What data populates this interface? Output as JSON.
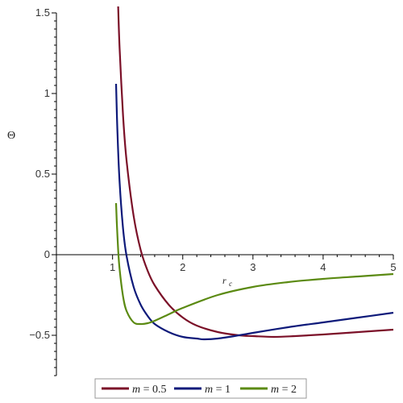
{
  "chart_data": {
    "type": "line",
    "title": "",
    "xlabel": "r",
    "xlabel_sub": "c",
    "ylabel": "Θ",
    "xlim": [
      0.2,
      5
    ],
    "ylim": [
      -0.75,
      1.5
    ],
    "x_ticks": [
      {
        "value": 1,
        "label": "1"
      },
      {
        "value": 2,
        "label": "2"
      },
      {
        "value": 3,
        "label": "3"
      },
      {
        "value": 4,
        "label": "4"
      },
      {
        "value": 5,
        "label": "5"
      }
    ],
    "y_ticks": [
      {
        "value": 1.5,
        "label": "1.5"
      },
      {
        "value": 1,
        "label": "1"
      },
      {
        "value": 0.5,
        "label": "0.5"
      },
      {
        "value": 0,
        "label": "0"
      },
      {
        "value": -0.5,
        "label": "−0.5"
      }
    ],
    "grid": false,
    "legend_position": "bottom",
    "series": [
      {
        "name": "m = 0.5",
        "legend_var": "m",
        "legend_value": " = 0.5",
        "color": "#7b1028",
        "x": [
          1.08,
          1.1,
          1.15,
          1.2,
          1.3,
          1.4,
          1.5,
          1.6,
          1.8,
          2.0,
          2.2,
          2.5,
          2.8,
          3.0,
          3.3,
          3.6,
          4.0,
          4.5,
          5.0
        ],
        "y": [
          1.54,
          1.28,
          0.86,
          0.58,
          0.24,
          0.03,
          -0.1,
          -0.19,
          -0.31,
          -0.39,
          -0.44,
          -0.48,
          -0.5,
          -0.505,
          -0.51,
          -0.505,
          -0.495,
          -0.48,
          -0.465
        ]
      },
      {
        "name": "m = 1",
        "legend_var": "m",
        "legend_value": " = 1",
        "color": "#0e1a7a",
        "x": [
          1.05,
          1.07,
          1.1,
          1.15,
          1.2,
          1.3,
          1.4,
          1.5,
          1.6,
          1.8,
          2.0,
          2.2,
          2.3,
          2.5,
          2.8,
          3.0,
          3.5,
          4.0,
          4.5,
          5.0
        ],
        "y": [
          1.06,
          0.75,
          0.45,
          0.16,
          -0.01,
          -0.2,
          -0.31,
          -0.38,
          -0.43,
          -0.48,
          -0.51,
          -0.52,
          -0.525,
          -0.52,
          -0.5,
          -0.485,
          -0.45,
          -0.42,
          -0.39,
          -0.36
        ]
      },
      {
        "name": "m = 2",
        "legend_var": "m",
        "legend_value": " = 2",
        "color": "#5b8a12",
        "x": [
          1.05,
          1.06,
          1.08,
          1.1,
          1.15,
          1.2,
          1.3,
          1.4,
          1.5,
          1.6,
          1.8,
          2.0,
          2.5,
          3.0,
          3.5,
          4.0,
          4.5,
          5.0
        ],
        "y": [
          0.32,
          0.2,
          0.03,
          -0.09,
          -0.26,
          -0.35,
          -0.42,
          -0.43,
          -0.425,
          -0.41,
          -0.37,
          -0.33,
          -0.25,
          -0.2,
          -0.17,
          -0.15,
          -0.135,
          -0.12
        ]
      }
    ]
  }
}
